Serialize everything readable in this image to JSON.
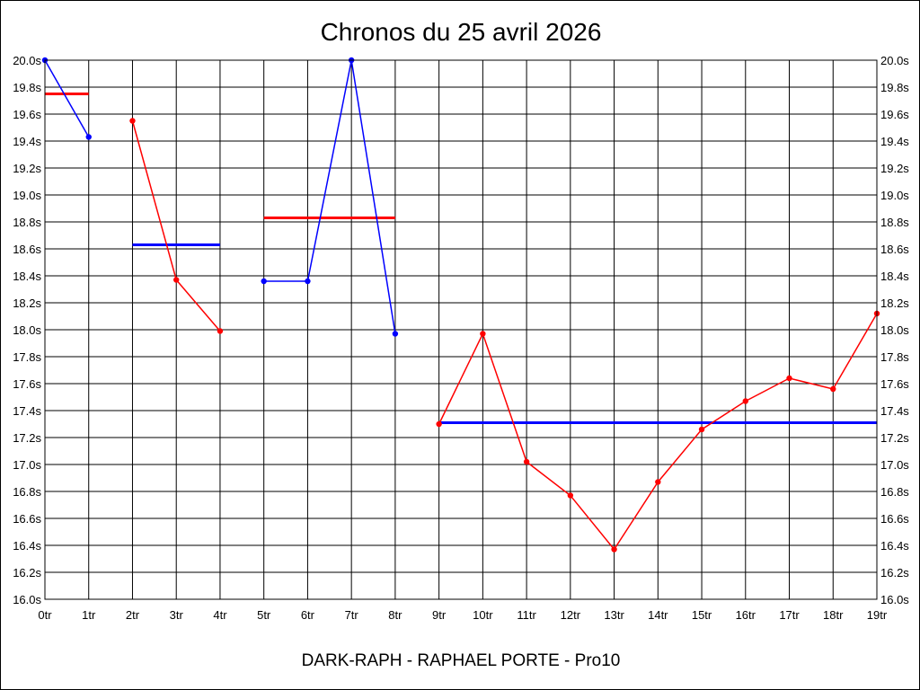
{
  "chart_data": {
    "type": "line",
    "title": "Chronos du 25 avril 2026",
    "footer": "DARK-RAPH - RAPHAEL PORTE - Pro10",
    "x_tick_labels": [
      "0tr",
      "1tr",
      "2tr",
      "3tr",
      "4tr",
      "5tr",
      "6tr",
      "7tr",
      "8tr",
      "9tr",
      "10tr",
      "11tr",
      "12tr",
      "13tr",
      "14tr",
      "15tr",
      "16tr",
      "17tr",
      "18tr",
      "19tr"
    ],
    "y_tick_labels": [
      "20.0s",
      "19.8s",
      "19.6s",
      "19.4s",
      "19.2s",
      "19.0s",
      "18.8s",
      "18.6s",
      "18.4s",
      "18.2s",
      "18.0s",
      "17.8s",
      "17.6s",
      "17.4s",
      "17.2s",
      "17.0s",
      "16.8s",
      "16.6s",
      "16.4s",
      "16.2s",
      "16.0s"
    ],
    "xlim": [
      0,
      19
    ],
    "ylim": [
      16.0,
      20.0
    ],
    "grid": true,
    "colors": {
      "red": "#ff0000",
      "blue": "#0000ff"
    },
    "segments": [
      {
        "color": "blue",
        "points": [
          [
            0,
            20.0
          ],
          [
            1,
            19.43
          ]
        ],
        "average": {
          "x": [
            0,
            1
          ],
          "y": 19.75,
          "color": "red"
        }
      },
      {
        "color": "red",
        "points": [
          [
            2,
            19.55
          ],
          [
            3,
            18.37
          ],
          [
            4,
            17.99
          ]
        ],
        "average": {
          "x": [
            2,
            4
          ],
          "y": 18.63,
          "color": "blue"
        }
      },
      {
        "color": "blue",
        "points": [
          [
            5,
            18.36
          ],
          [
            6,
            18.36
          ],
          [
            7,
            20.0
          ],
          [
            8,
            17.97
          ]
        ],
        "average": {
          "x": [
            5,
            8
          ],
          "y": 18.83,
          "color": "red"
        }
      },
      {
        "color": "red",
        "points": [
          [
            9,
            17.3
          ],
          [
            10,
            17.97
          ],
          [
            11,
            17.02
          ],
          [
            12,
            16.77
          ],
          [
            13,
            16.37
          ],
          [
            14,
            16.87
          ],
          [
            15,
            17.26
          ],
          [
            16,
            17.47
          ],
          [
            17,
            17.64
          ],
          [
            18,
            17.56
          ],
          [
            19,
            18.12
          ]
        ],
        "average": {
          "x": [
            9,
            19
          ],
          "y": 17.31,
          "color": "blue"
        }
      }
    ]
  }
}
